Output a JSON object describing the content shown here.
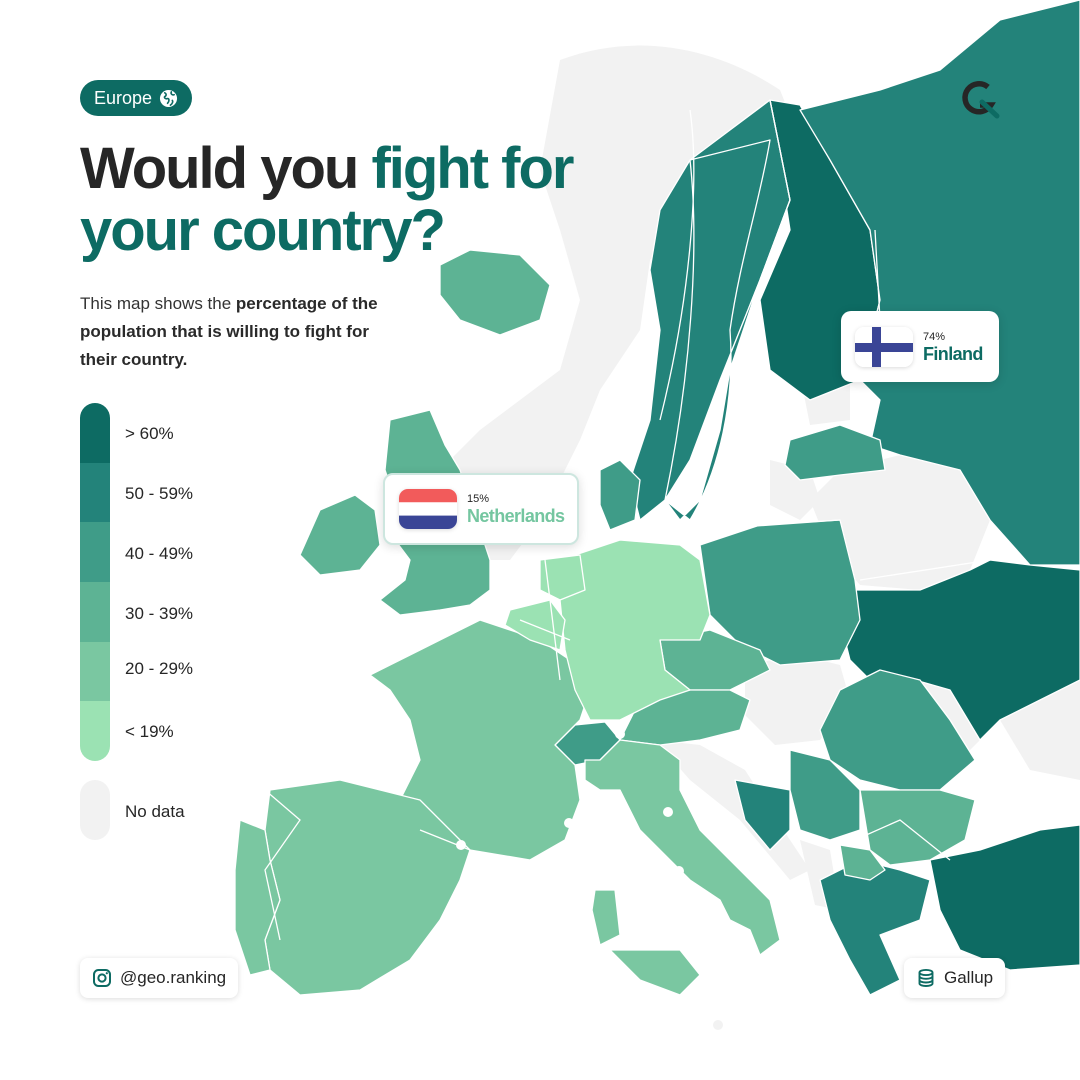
{
  "badge": {
    "label": "Europe",
    "icon": "globe-icon"
  },
  "title": {
    "part1": "Would you ",
    "accent": "fight for your country?"
  },
  "subtitle": {
    "intro": "This map shows the ",
    "bold": "percentage of the population that is willing to fight for their country."
  },
  "legend": {
    "items": [
      {
        "label": "> 60%",
        "color": "#0d6b63"
      },
      {
        "label": "50 - 59%",
        "color": "#23837a"
      },
      {
        "label": "40 - 49%",
        "color": "#3f9c88"
      },
      {
        "label": "30 - 39%",
        "color": "#5db394"
      },
      {
        "label": "20 - 29%",
        "color": "#7ac7a1"
      },
      {
        "label": "< 19%",
        "color": "#9be2b3"
      }
    ],
    "no_data": {
      "label": "No data",
      "color": "#f2f2f2"
    }
  },
  "callouts": {
    "netherlands": {
      "percent": "15%",
      "name": "Netherlands",
      "flag_colors": [
        "#f25b5b",
        "#ffffff",
        "#3a4596"
      ]
    },
    "finland": {
      "percent": "74%",
      "name": "Finland",
      "flag_colors": [
        "#ffffff",
        "#3a4596"
      ]
    }
  },
  "footer": {
    "handle": "@geo.ranking",
    "handle_icon": "instagram-icon",
    "source": "Gallup",
    "source_icon": "database-icon"
  },
  "map": {
    "countries": [
      {
        "name": "Finland",
        "bin": "> 60%"
      },
      {
        "name": "Norway",
        "bin": "50 - 59%"
      },
      {
        "name": "Sweden",
        "bin": "50 - 59%"
      },
      {
        "name": "Russia",
        "bin": "50 - 59%"
      },
      {
        "name": "Ukraine",
        "bin": "> 60%"
      },
      {
        "name": "Turkey",
        "bin": "> 60%"
      },
      {
        "name": "Greece",
        "bin": "50 - 59%"
      },
      {
        "name": "Poland",
        "bin": "40 - 49%"
      },
      {
        "name": "Romania",
        "bin": "40 - 49%"
      },
      {
        "name": "Latvia",
        "bin": "40 - 49%"
      },
      {
        "name": "Denmark",
        "bin": "40 - 49%"
      },
      {
        "name": "Bosnia and Herzegovina",
        "bin": "50 - 59%"
      },
      {
        "name": "Serbia",
        "bin": "40 - 49%"
      },
      {
        "name": "Switzerland",
        "bin": "40 - 49%"
      },
      {
        "name": "Iceland",
        "bin": "30 - 39%"
      },
      {
        "name": "United Kingdom",
        "bin": "30 - 39%"
      },
      {
        "name": "Ireland",
        "bin": "30 - 39%"
      },
      {
        "name": "Czechia",
        "bin": "30 - 39%"
      },
      {
        "name": "Austria",
        "bin": "30 - 39%"
      },
      {
        "name": "Bulgaria",
        "bin": "30 - 39%"
      },
      {
        "name": "North Macedonia",
        "bin": "30 - 39%"
      },
      {
        "name": "France",
        "bin": "20 - 29%"
      },
      {
        "name": "Spain",
        "bin": "20 - 29%"
      },
      {
        "name": "Portugal",
        "bin": "20 - 29%"
      },
      {
        "name": "Italy",
        "bin": "20 - 29%"
      },
      {
        "name": "Germany",
        "bin": "< 19%"
      },
      {
        "name": "Netherlands",
        "bin": "< 19%"
      },
      {
        "name": "Belgium",
        "bin": "< 19%"
      },
      {
        "name": "Belarus",
        "bin": "No data"
      },
      {
        "name": "Lithuania",
        "bin": "No data"
      },
      {
        "name": "Estonia",
        "bin": "No data"
      },
      {
        "name": "Hungary",
        "bin": "No data"
      },
      {
        "name": "Slovakia",
        "bin": "No data"
      },
      {
        "name": "Moldova",
        "bin": "No data"
      },
      {
        "name": "Croatia",
        "bin": "No data"
      },
      {
        "name": "Albania",
        "bin": "No data"
      }
    ]
  }
}
